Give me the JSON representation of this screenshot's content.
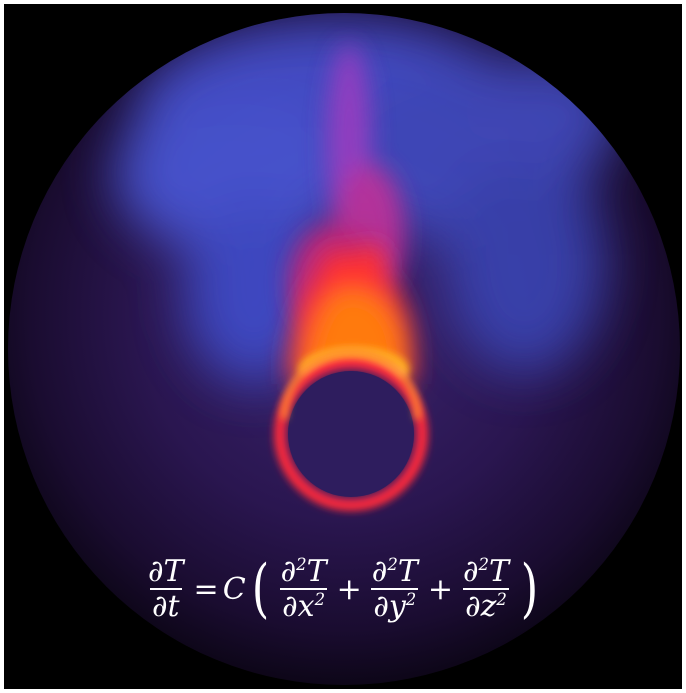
{
  "image": {
    "subject": "heated-ring-flame-visualization",
    "colors": {
      "background": "#000000",
      "disc_edge": "#1a0a2a",
      "haze_blue": "#4a55d8",
      "plume_magenta": "#c0309a",
      "flame_red": "#ff3020",
      "flame_orange": "#ff9a10",
      "flame_yellow": "#ffe060"
    }
  },
  "equation": {
    "lhs_num": "∂T",
    "lhs_den": "∂t",
    "equals": "=",
    "constant": "C",
    "open_paren": "(",
    "t1_num_d": "∂",
    "t1_num_sup": "2",
    "t1_num_var": "T",
    "t1_den_d": "∂x",
    "t1_den_sup": "2",
    "plus1": "+",
    "t2_num_d": "∂",
    "t2_num_sup": "2",
    "t2_num_var": "T",
    "t2_den_d": "∂y",
    "t2_den_sup": "2",
    "plus2": "+",
    "t3_num_d": "∂",
    "t3_num_sup": "2",
    "t3_num_var": "T",
    "t3_den_d": "∂z",
    "t3_den_sup": "2",
    "close_paren": ")"
  }
}
